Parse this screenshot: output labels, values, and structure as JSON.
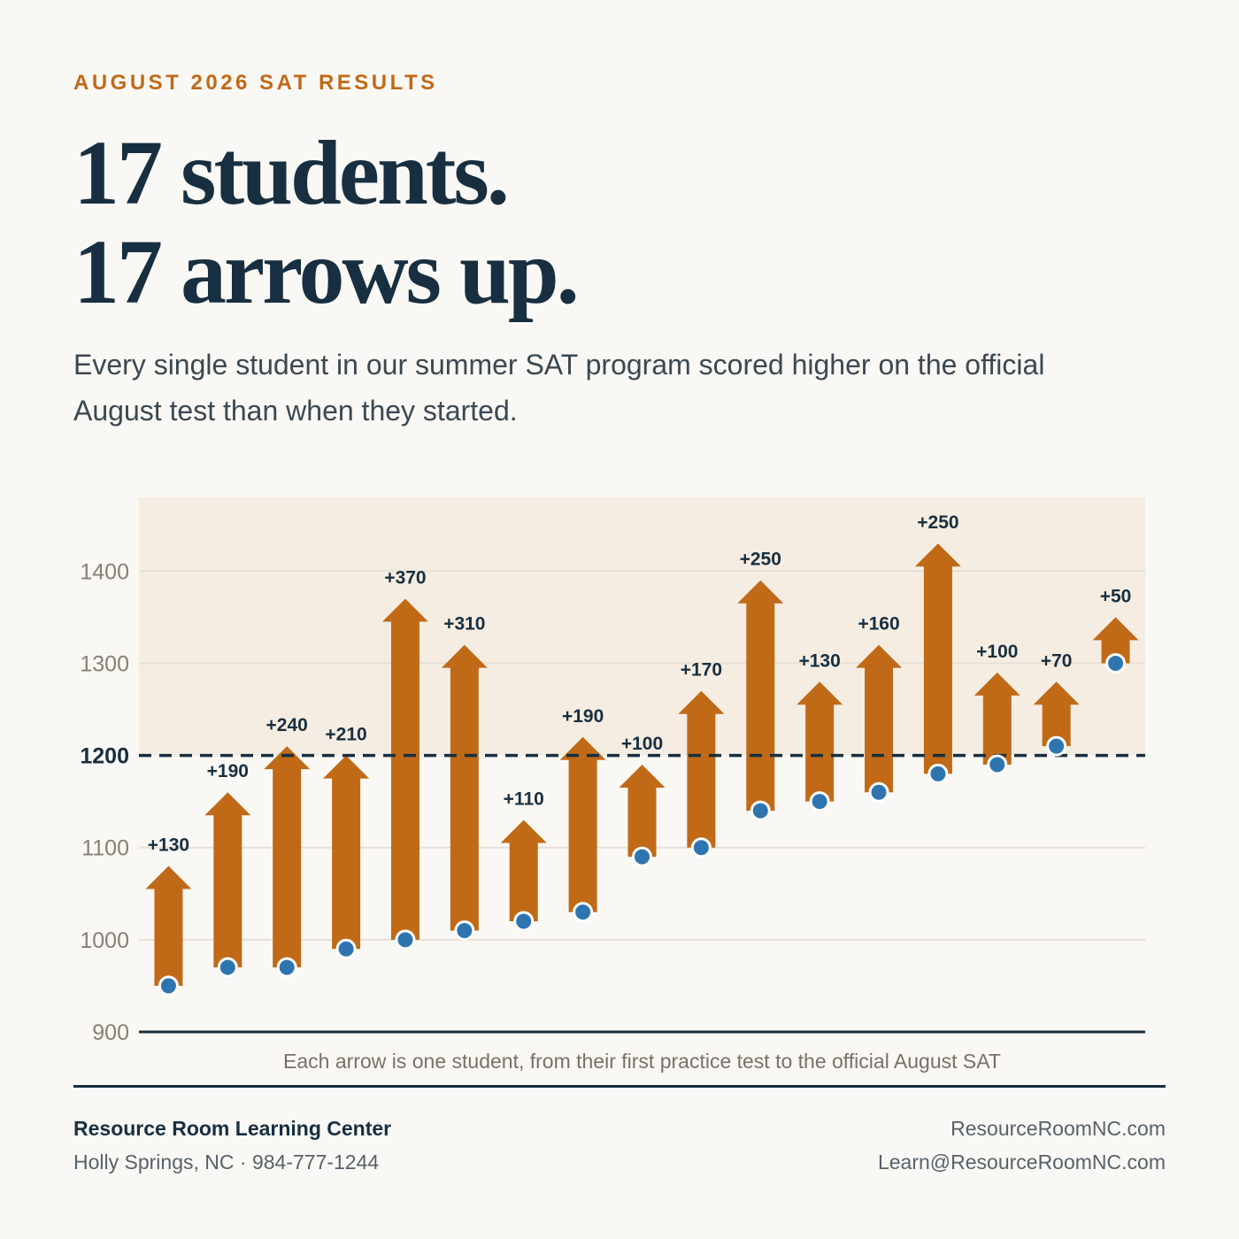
{
  "header": {
    "eyebrow": "AUGUST 2026 SAT RESULTS",
    "headline_line1": "17 students.",
    "headline_line2": "17 arrows up.",
    "subhead": "Every single student in our summer SAT program scored higher on the official August test than when they started."
  },
  "chart_data": {
    "type": "arrow-range",
    "y_ticks": [
      900,
      1000,
      1100,
      1200,
      1300,
      1400
    ],
    "ylim": [
      900,
      1480
    ],
    "reference_line": {
      "value": 1200,
      "label": "1200",
      "style": "dashed"
    },
    "shaded_region": {
      "from": 1200,
      "to": 1480
    },
    "grid": true,
    "series": [
      {
        "start": [
          950,
          970,
          970,
          990,
          1000,
          1010,
          1020,
          1030,
          1090,
          1100,
          1140,
          1150,
          1160,
          1180,
          1190,
          1210,
          1300
        ]
      },
      {
        "end": [
          1080,
          1160,
          1210,
          1200,
          1370,
          1320,
          1130,
          1220,
          1190,
          1270,
          1390,
          1280,
          1320,
          1430,
          1290,
          1280,
          1350
        ]
      }
    ],
    "gain_labels": [
      "+130",
      "+190",
      "+240",
      "+210",
      "+370",
      "+310",
      "+110",
      "+190",
      "+100",
      "+170",
      "+250",
      "+130",
      "+160",
      "+250",
      "+100",
      "+70",
      "+50"
    ],
    "caption": "Each arrow is one student, from their first practice test to the official August SAT",
    "colors": {
      "arrow": "#c06a18",
      "start_dot": "#2e75b0",
      "axis": "#172f40",
      "shade": "#f6ede2",
      "grid": "#e6e0d6"
    }
  },
  "footer": {
    "org_name": "Resource Room Learning Center",
    "location": "Holly Springs, NC",
    "separator": "·",
    "phone": "984-777-1244",
    "website": "ResourceRoomNC.com",
    "email": "Learn@ResourceRoomNC.com"
  }
}
